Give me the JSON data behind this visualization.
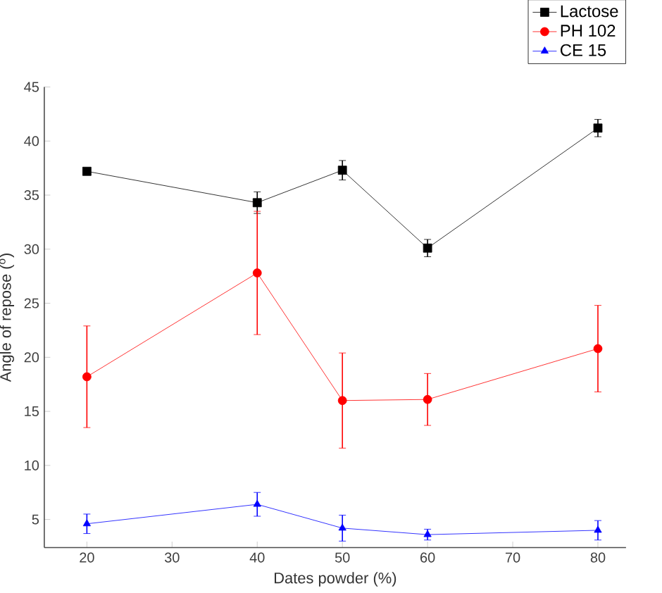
{
  "chart_data": {
    "type": "line",
    "xlabel": "Dates powder (%)",
    "ylabel": "Angle of repose ($^{o}$)",
    "x": [
      20,
      40,
      50,
      60,
      80
    ],
    "series": [
      {
        "name": "Lactose",
        "color": "#000000",
        "marker": "square",
        "values": [
          37.2,
          34.3,
          37.3,
          30.1,
          41.2
        ],
        "errors": [
          null,
          1.0,
          0.9,
          0.8,
          0.8
        ]
      },
      {
        "name": "PH 102",
        "color": "#ff0000",
        "marker": "circle",
        "values": [
          18.2,
          27.8,
          16.0,
          16.1,
          20.8
        ],
        "errors": [
          4.7,
          5.7,
          4.4,
          2.4,
          4.0
        ]
      },
      {
        "name": "CE 15",
        "color": "#0000ff",
        "marker": "triangle",
        "values": [
          4.6,
          6.4,
          4.2,
          3.6,
          4.0
        ],
        "errors": [
          0.9,
          1.1,
          1.2,
          0.5,
          0.9
        ]
      }
    ],
    "xlim": [
      15,
      83.3
    ],
    "ylim": [
      2.4,
      45
    ],
    "xticks": [
      20,
      30,
      40,
      50,
      60,
      70,
      80
    ],
    "yticks": [
      5,
      10,
      15,
      20,
      25,
      30,
      35,
      40,
      45
    ],
    "legend": "top right",
    "grid": false
  }
}
